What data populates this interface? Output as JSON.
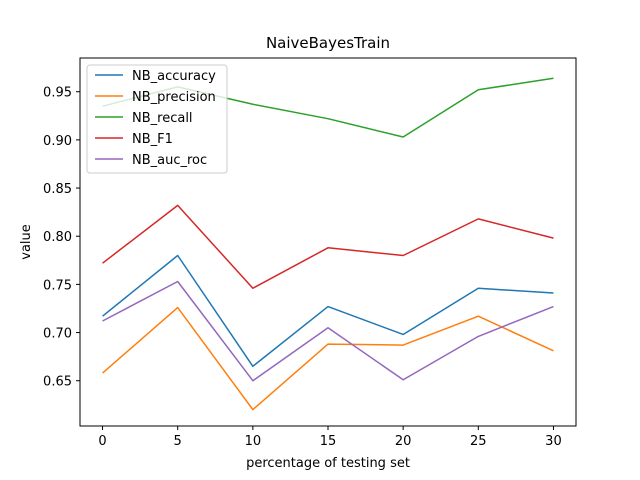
{
  "chart_data": {
    "type": "line",
    "title": "NaiveBayesTrain",
    "xlabel": "percentage of testing set",
    "ylabel": "value",
    "x": [
      0,
      5,
      10,
      15,
      20,
      25,
      30
    ],
    "x_ticks": [
      "0",
      "5",
      "10",
      "15",
      "20",
      "25",
      "30"
    ],
    "y_ticks": [
      "0.65",
      "0.70",
      "0.75",
      "0.80",
      "0.85",
      "0.90",
      "0.95"
    ],
    "xlim": [
      -1.5,
      31.5
    ],
    "ylim": [
      0.603,
      0.985
    ],
    "grid": false,
    "legend_position": "upper-left",
    "series": [
      {
        "name": "NB_accuracy",
        "color": "#1f77b4",
        "values": [
          0.717,
          0.78,
          0.665,
          0.727,
          0.698,
          0.746,
          0.741
        ]
      },
      {
        "name": "NB_precision",
        "color": "#ff7f0e",
        "values": [
          0.658,
          0.726,
          0.62,
          0.688,
          0.687,
          0.717,
          0.681
        ]
      },
      {
        "name": "NB_recall",
        "color": "#2ca02c",
        "values": [
          0.935,
          0.955,
          0.937,
          0.922,
          0.903,
          0.952,
          0.964
        ]
      },
      {
        "name": "NB_F1",
        "color": "#d62728",
        "values": [
          0.772,
          0.832,
          0.746,
          0.788,
          0.78,
          0.818,
          0.798
        ]
      },
      {
        "name": "NB_auc_roc",
        "color": "#9467bd",
        "values": [
          0.712,
          0.753,
          0.65,
          0.705,
          0.651,
          0.696,
          0.727
        ]
      }
    ]
  }
}
